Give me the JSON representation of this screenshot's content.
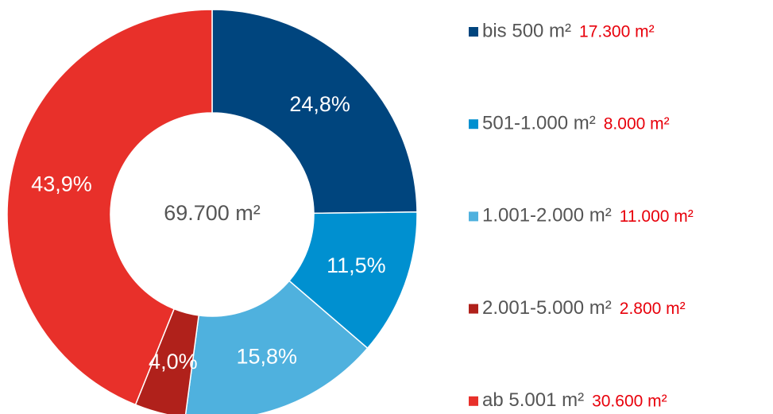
{
  "chart_data": {
    "type": "donut",
    "categories": [
      "bis 500 m²",
      "501-1.000 m²",
      "1.001-2.000 m²",
      "2.001-5.000 m²",
      "ab 5.001 m²"
    ],
    "values": [
      24.8,
      11.5,
      15.8,
      4.0,
      43.9
    ],
    "value_labels": [
      "24,8%",
      "11,5%",
      "15,8%",
      "4,0%",
      "43,9%"
    ],
    "amounts": [
      17300,
      8000,
      11000,
      2800,
      30600
    ],
    "amount_labels": [
      "17.300 m²",
      "8.000 m²",
      "11.000 m²",
      "2.800 m²",
      "30.600 m²"
    ],
    "colors": [
      "#00457e",
      "#0090d0",
      "#4fb1de",
      "#b0211b",
      "#e8302a"
    ],
    "center_label": "69.700 m²"
  }
}
